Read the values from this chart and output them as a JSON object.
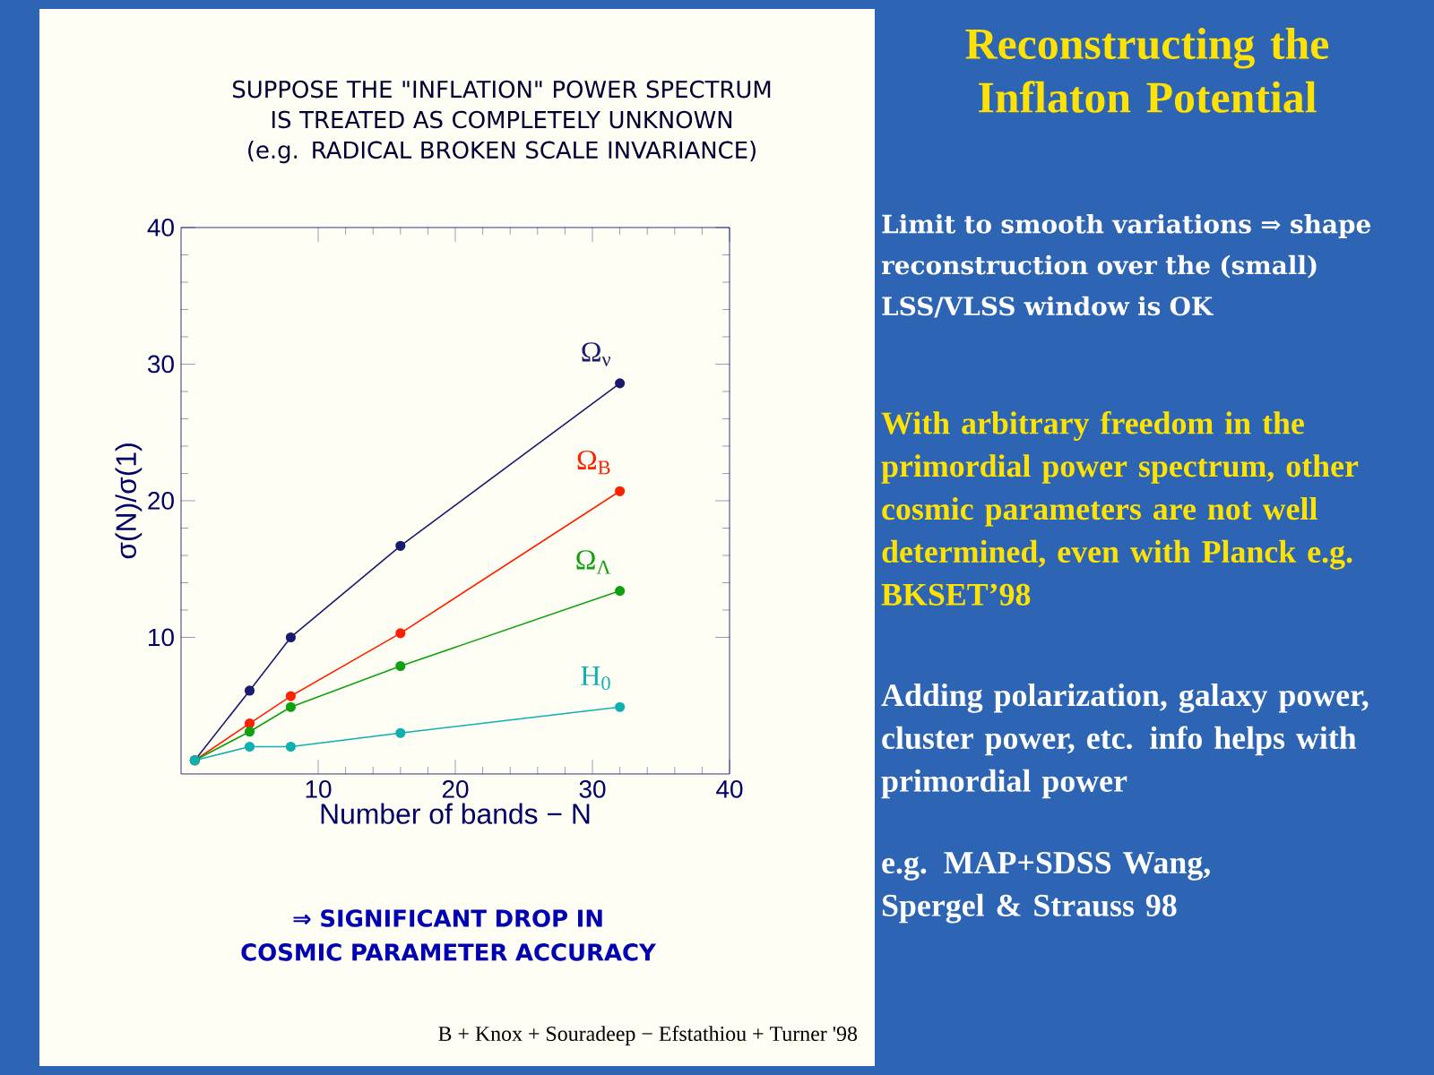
{
  "chart_data": {
    "type": "line",
    "title": "Reconstructing the Inflaton Potential",
    "xlabel": "Number of bands − N",
    "ylabel": "σ(N)/σ(1)",
    "x": [
      1,
      5,
      8,
      16,
      32
    ],
    "series": [
      {
        "name": "Ω$_{ν}$",
        "color": "#1a1a6e",
        "values": [
          1,
          6.1,
          10,
          16.7,
          28.6
        ]
      },
      {
        "name": "Ω$_{B}$",
        "color": "#ff2000",
        "values": [
          1,
          3.7,
          5.7,
          10.3,
          20.7
        ]
      },
      {
        "name": "Ω$_{Λ}$",
        "color": "#10a010",
        "values": [
          1,
          3.1,
          4.9,
          7.9,
          13.4
        ]
      },
      {
        "name": "H$_{0}$",
        "color": "#10b0b0",
        "values": [
          1,
          2.0,
          2.0,
          3.0,
          4.9
        ]
      }
    ],
    "xlim": [
      0,
      40
    ],
    "ylim": [
      0,
      40
    ],
    "xticks": [
      10,
      20,
      30,
      40
    ],
    "yticks": [
      10,
      20,
      30,
      40
    ],
    "marker": "circle",
    "line_style": "solid",
    "annotations": [
      "SUPPOSE THE \"INFLATION\" POWER SPECTRUM IS TREATED AS COMPLETELY UNKNOWN (e.g. RADICAL BROKEN SCALE INVARIANCE)",
      "Limit to smooth variations ⇒ shape reconstruction over the (small) LSS/VLSS window is OK",
      "With arbitrary freedom in the primordial power spectrum, other cosmic parameters are not well determined, even with Planck e.g. BKSET’98",
      "Adding polarization, galaxy power, cluster power, etc. info helps with primordial power",
      "e.g. MAP+SDSS Wang, Spergel & Strauss 98",
      "⇒ SIGNIFICANT DROP IN COSMIC PARAMETER ACCURACY",
      "B + Knox + Souradeep − Efstathiou + Turner '98"
    ]
  }
}
